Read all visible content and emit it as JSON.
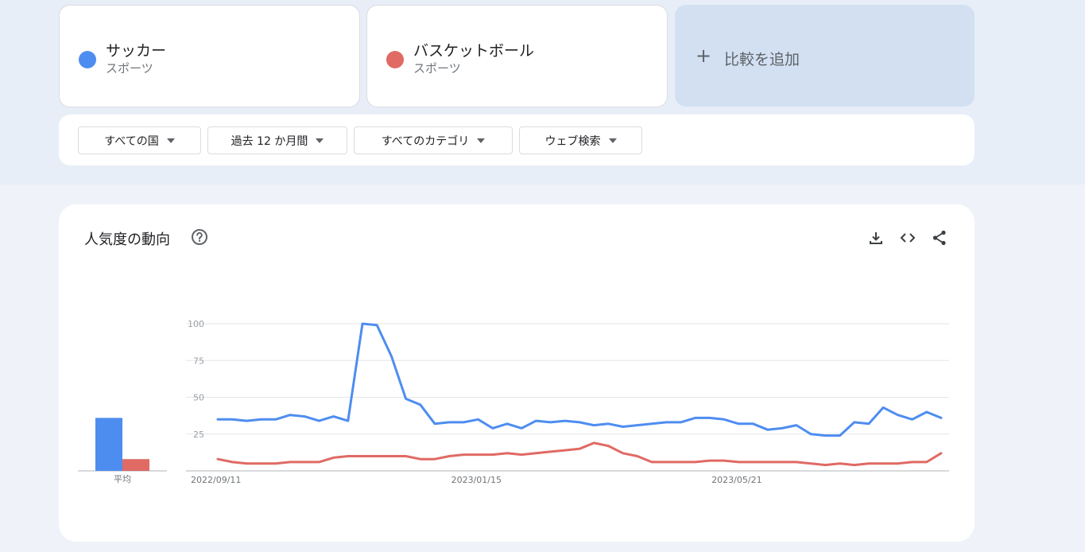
{
  "terms": [
    {
      "name": "サッカー",
      "category": "スポーツ",
      "color": "#4e8df0"
    },
    {
      "name": "バスケットボール",
      "category": "スポーツ",
      "color": "#e06a64"
    }
  ],
  "add_compare": {
    "plus": "+",
    "label": "比較を追加"
  },
  "filters": [
    {
      "label": "すべての国"
    },
    {
      "label": "過去 12 か月間"
    },
    {
      "label": "すべてのカテゴリ"
    },
    {
      "label": "ウェブ検索"
    }
  ],
  "panel": {
    "title": "人気度の動向",
    "icons": [
      "help-icon",
      "download-icon",
      "embed-code-icon",
      "share-icon"
    ]
  },
  "chart_data": {
    "type": "line",
    "title": "",
    "xlabel": "",
    "ylabel": "",
    "ylim": [
      0,
      100
    ],
    "yticks": [
      25,
      50,
      75,
      100
    ],
    "x_tick_labels": [
      "2022/09/11",
      "2023/01/15",
      "2023/05/21"
    ],
    "x_tick_indices": [
      0,
      18,
      36
    ],
    "series": [
      {
        "name": "サッカー",
        "color": "#4e8df0",
        "values": [
          35,
          35,
          34,
          35,
          35,
          38,
          37,
          34,
          37,
          34,
          100,
          99,
          78,
          49,
          45,
          32,
          33,
          33,
          35,
          29,
          32,
          29,
          34,
          33,
          34,
          33,
          31,
          32,
          30,
          31,
          32,
          33,
          33,
          36,
          36,
          35,
          32,
          32,
          28,
          29,
          31,
          25,
          24,
          24,
          33,
          32,
          43,
          38,
          35,
          40,
          36
        ]
      },
      {
        "name": "バスケットボール",
        "color": "#e06a64",
        "values": [
          8,
          6,
          5,
          5,
          5,
          6,
          6,
          6,
          9,
          10,
          10,
          10,
          10,
          10,
          8,
          8,
          10,
          11,
          11,
          11,
          12,
          11,
          12,
          13,
          14,
          15,
          19,
          17,
          12,
          10,
          6,
          6,
          6,
          6,
          7,
          7,
          6,
          6,
          6,
          6,
          6,
          5,
          4,
          5,
          4,
          5,
          5,
          5,
          6,
          6,
          12
        ]
      }
    ],
    "average": {
      "label": "平均",
      "values": [
        36,
        8
      ]
    }
  }
}
